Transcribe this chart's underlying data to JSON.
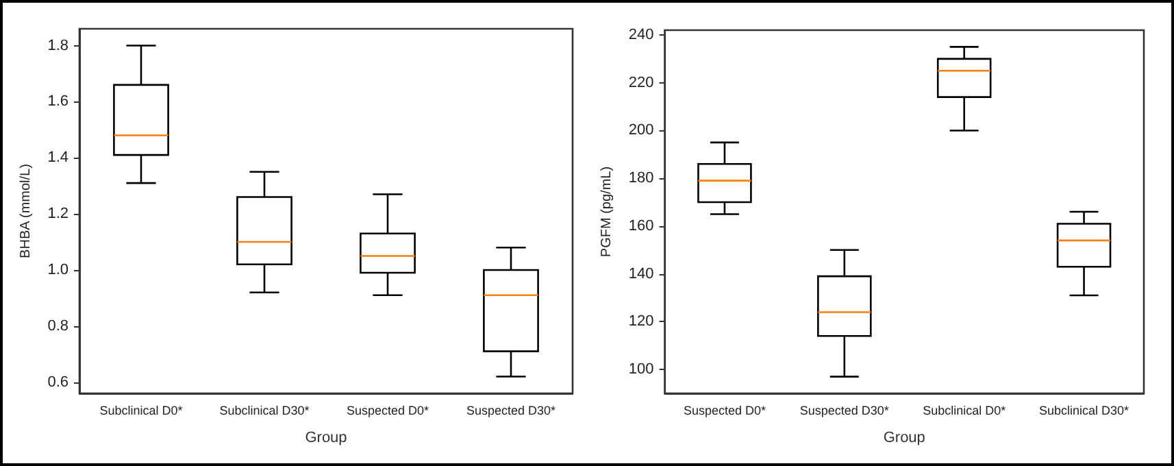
{
  "chart_data": [
    {
      "type": "box",
      "xlabel": "Group",
      "ylabel": "BHBA (mmol/L)",
      "categories": [
        "Subclinical D0*",
        "Subclinical D30*",
        "Suspected D0*",
        "Suspected D30*"
      ],
      "ylim": [
        0.56,
        1.86
      ],
      "yticks": [
        0.6,
        0.8,
        {
          "value": 1,
          "label": "1.0"
        },
        1.2,
        1.4,
        1.6,
        1.8
      ],
      "grid": false,
      "series": [
        {
          "color": "#000000",
          "boxes": [
            {
              "low": 1.31,
              "q1": 1.41,
              "median": 1.48,
              "q3": 1.66,
              "high": 1.8
            },
            {
              "low": 0.92,
              "q1": 1.02,
              "median": 1.1,
              "q3": 1.26,
              "high": 1.35
            },
            {
              "low": 0.91,
              "q1": 0.99,
              "median": 1.05,
              "q3": 1.13,
              "high": 1.27
            },
            {
              "low": 0.62,
              "q1": 0.71,
              "median": 0.91,
              "q3": 1.0,
              "high": 1.08
            }
          ]
        }
      ]
    },
    {
      "type": "box",
      "xlabel": "Group",
      "ylabel": "PGFM (pg/mL)",
      "categories": [
        "Suspected D0*",
        "Suspected D30*",
        "Subclinical D0*",
        "Subclinical D30*"
      ],
      "ylim": [
        90,
        242
      ],
      "yticks": [
        100,
        120,
        140,
        160,
        180,
        200,
        220,
        240
      ],
      "grid": false,
      "series": [
        {
          "color": "#000000",
          "boxes": [
            {
              "low": 165,
              "q1": 170,
              "median": 179,
              "q3": 186,
              "high": 195
            },
            {
              "low": 97,
              "q1": 114,
              "median": 124,
              "q3": 139,
              "high": 150
            },
            {
              "low": 200,
              "q1": 214,
              "median": 225,
              "q3": 230,
              "high": 235
            },
            {
              "low": 131,
              "q1": 143,
              "median": 154,
              "q3": 161,
              "high": 166
            }
          ]
        }
      ]
    }
  ]
}
